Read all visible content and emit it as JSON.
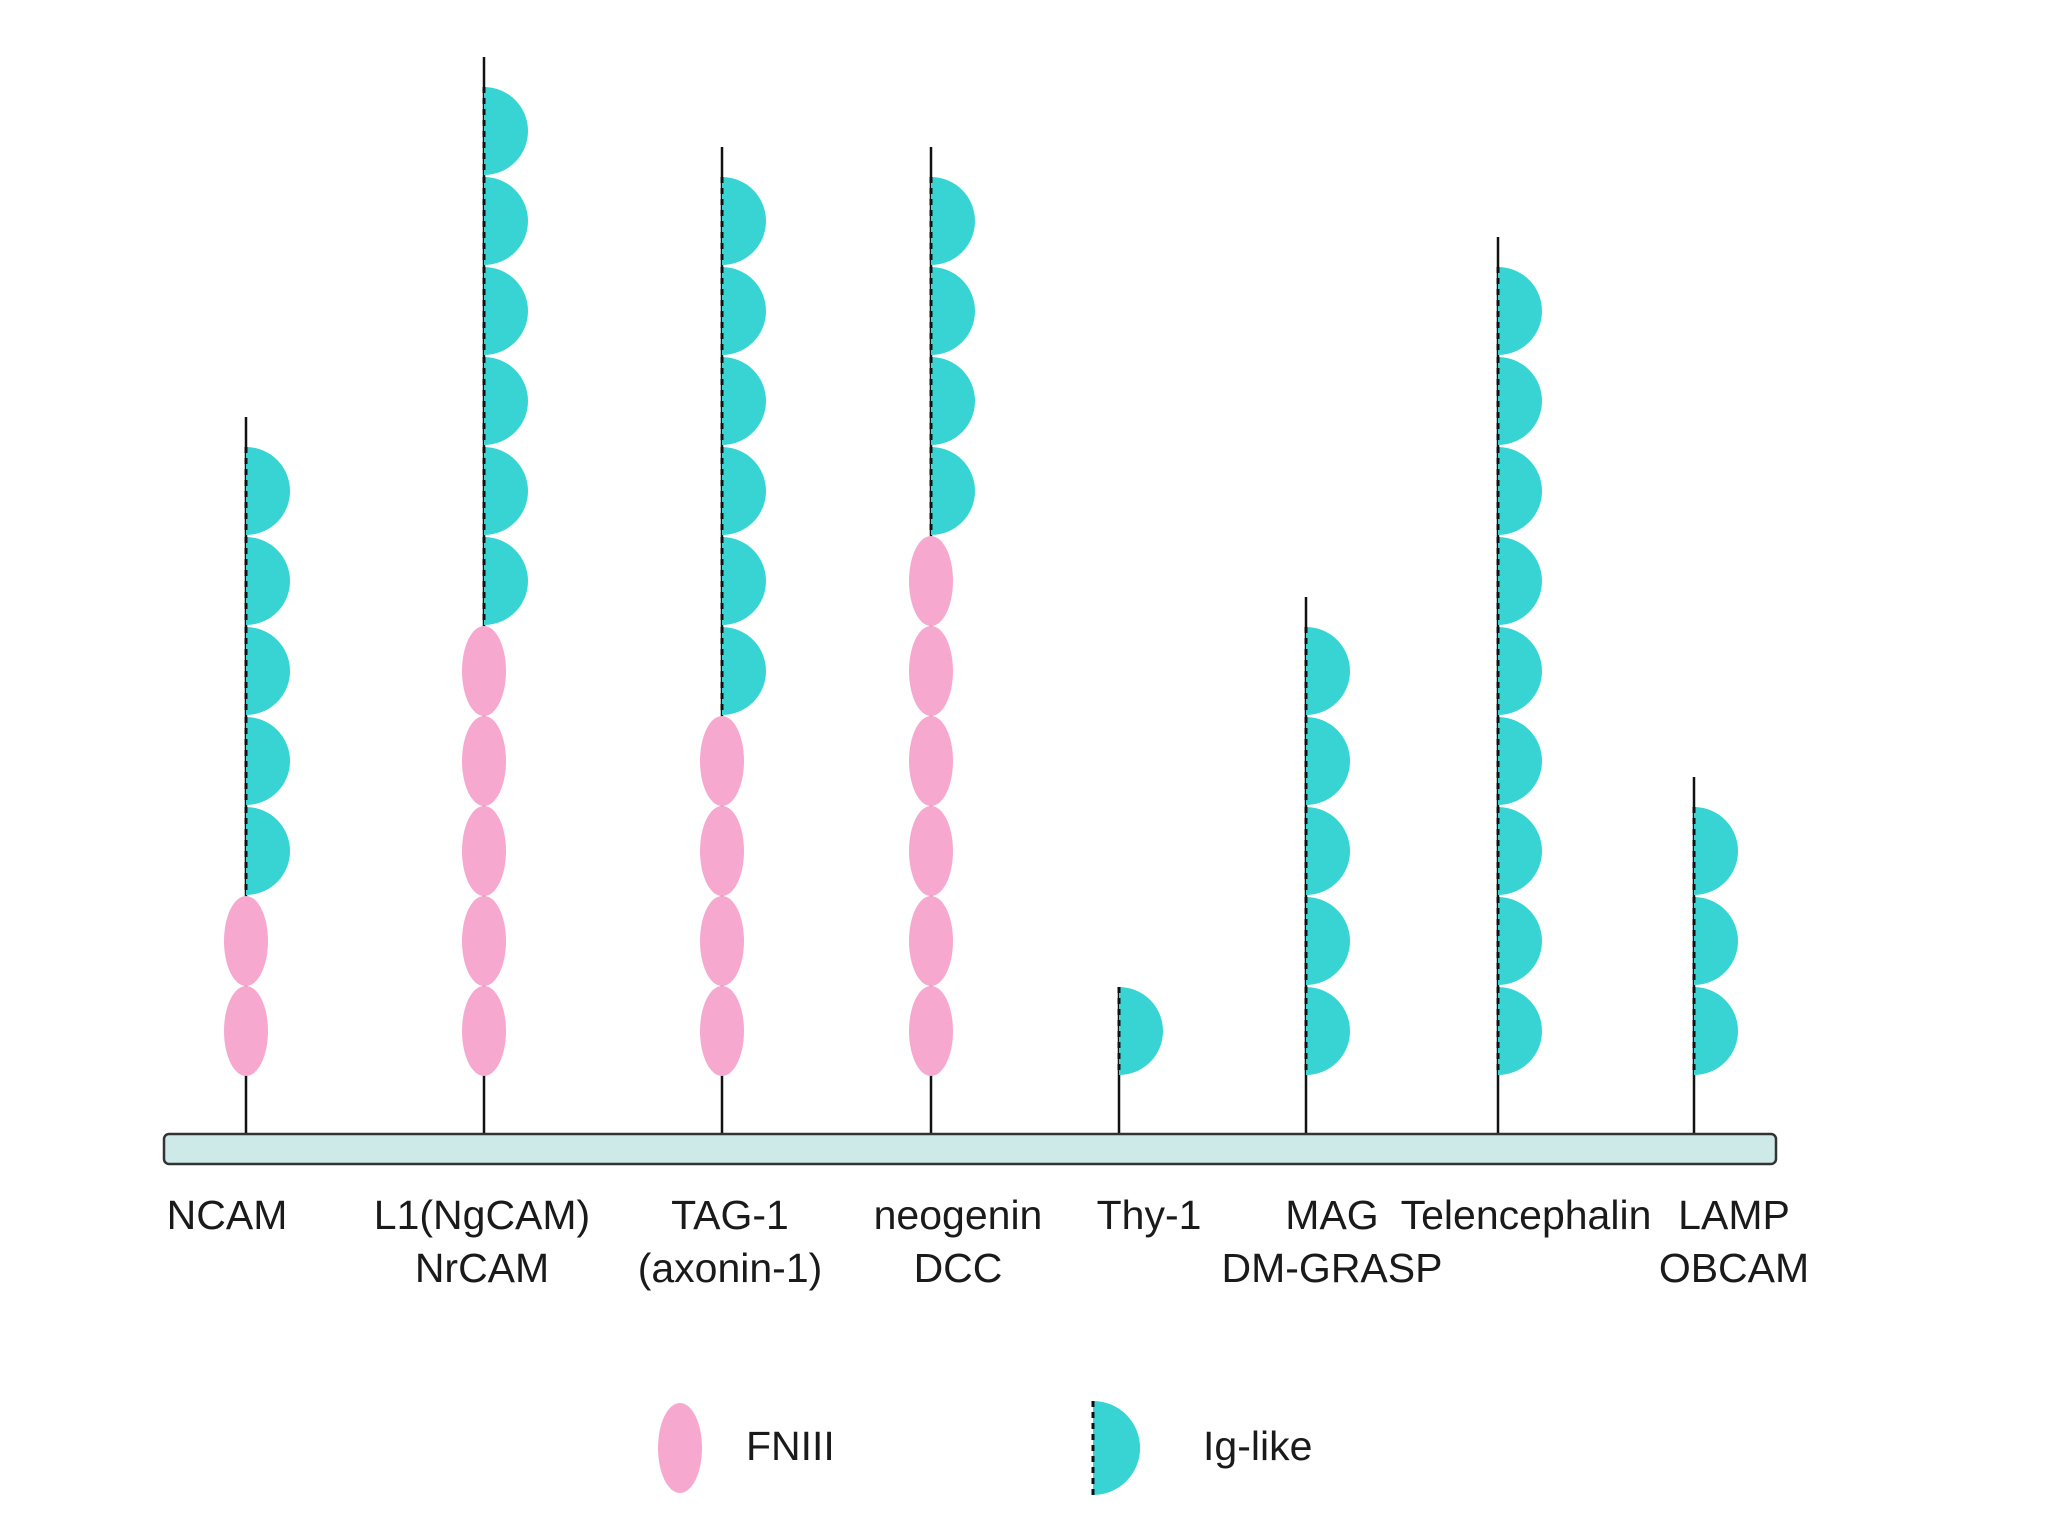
{
  "colors": {
    "fn3": "#f7a8cf",
    "ig": "#38d3d3",
    "membrane_fill": "#cdeae8",
    "membrane_stroke": "#333333",
    "stem": "#111111"
  },
  "molecules": [
    {
      "label_lines": [
        "NCAM"
      ],
      "ig_count": 5,
      "fn3_count": 2
    },
    {
      "label_lines": [
        "L1(NgCAM)",
        "NrCAM"
      ],
      "ig_count": 6,
      "fn3_count": 5
    },
    {
      "label_lines": [
        "TAG-1",
        "(axonin-1)"
      ],
      "ig_count": 6,
      "fn3_count": 4
    },
    {
      "label_lines": [
        "neogenin",
        "DCC"
      ],
      "ig_count": 4,
      "fn3_count": 6
    },
    {
      "label_lines": [
        "Thy-1"
      ],
      "ig_count": 1,
      "fn3_count": 0
    },
    {
      "label_lines": [
        "MAG",
        "DM-GRASP"
      ],
      "ig_count": 5,
      "fn3_count": 0
    },
    {
      "label_lines": [
        "Telencephalin"
      ],
      "ig_count": 9,
      "fn3_count": 0
    },
    {
      "label_lines": [
        "LAMP",
        "OBCAM"
      ],
      "ig_count": 3,
      "fn3_count": 0
    }
  ],
  "legend": {
    "fn3_label": "FNIII",
    "ig_label": "Ig-like"
  }
}
